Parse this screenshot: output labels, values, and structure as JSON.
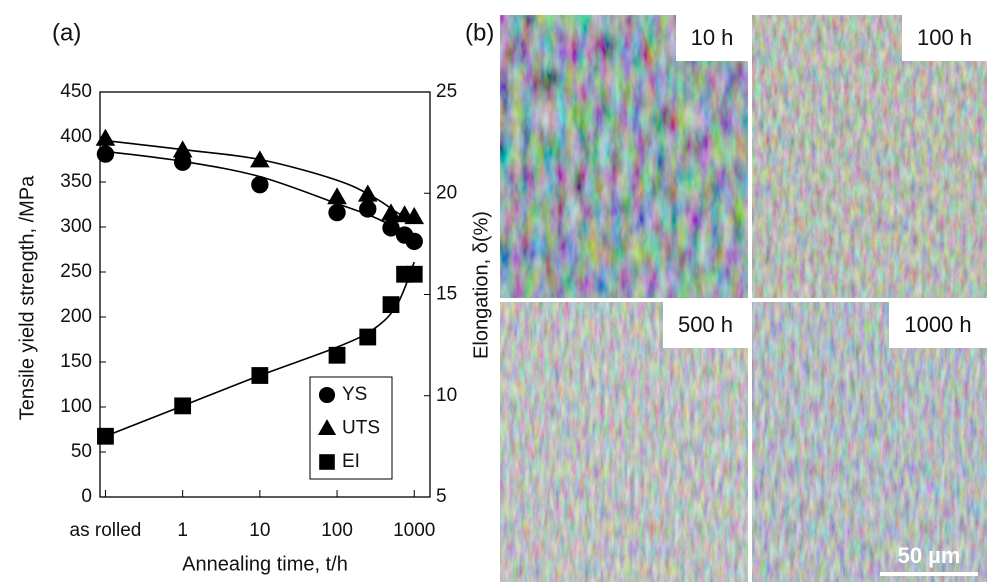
{
  "chart_data": {
    "type": "scatter",
    "panel_label": "(a)",
    "xlabel": "Annealing time, t/h",
    "ylabel": "Tensile yield strength,  /MPa",
    "y2label": "Elongation, δ(%)",
    "xscale": "log",
    "xlim": [
      0.085,
      1600
    ],
    "xticks": [
      {
        "value": 0.1,
        "label": "as rolled"
      },
      1,
      10,
      100,
      1000
    ],
    "ylim": [
      0,
      450
    ],
    "yticks": [
      0,
      50,
      100,
      150,
      200,
      250,
      300,
      350,
      400,
      450
    ],
    "y2lim": [
      5,
      25
    ],
    "y2ticks": [
      5,
      10,
      15,
      20,
      25
    ],
    "grid": false,
    "legend": "lower right",
    "x": [
      0.1,
      1,
      10,
      100,
      250,
      500,
      750,
      1000
    ],
    "series": [
      {
        "name": "YS",
        "marker": "circle",
        "color": "#000000",
        "values": [
          381,
          372,
          347,
          316,
          320,
          299,
          291,
          284
        ],
        "fit": {
          "x": [
            0.1,
            1,
            10,
            100,
            300,
            600,
            1000
          ],
          "values": [
            384,
            373,
            356,
            326,
            311,
            298,
            286
          ]
        }
      },
      {
        "name": "UTS",
        "marker": "triangle",
        "color": "#000000",
        "values": [
          398,
          385,
          374,
          333,
          336,
          315,
          313,
          311
        ],
        "fit": {
          "x": [
            0.1,
            1,
            10,
            100,
            300,
            600,
            1000
          ],
          "values": [
            396,
            386,
            375,
            352,
            333,
            316,
            305
          ]
        }
      },
      {
        "name": "EI",
        "marker": "square",
        "color": "#000000",
        "axis": "y2",
        "values": [
          8.0,
          9.5,
          11.0,
          12.0,
          12.9,
          14.5,
          16.0,
          16.0
        ],
        "fit": {
          "x": [
            0.1,
            1,
            10,
            100,
            300,
            600,
            1000
          ],
          "values": [
            8.0,
            9.5,
            11.0,
            12.4,
            13.3,
            14.5,
            16.6
          ]
        }
      }
    ]
  },
  "micrographs": {
    "panel_label": "(b)",
    "panels": [
      {
        "label": "10 h"
      },
      {
        "label": "100 h"
      },
      {
        "label": "500 h"
      },
      {
        "label": "1000 h"
      }
    ],
    "scale_bar": "50 µm"
  }
}
